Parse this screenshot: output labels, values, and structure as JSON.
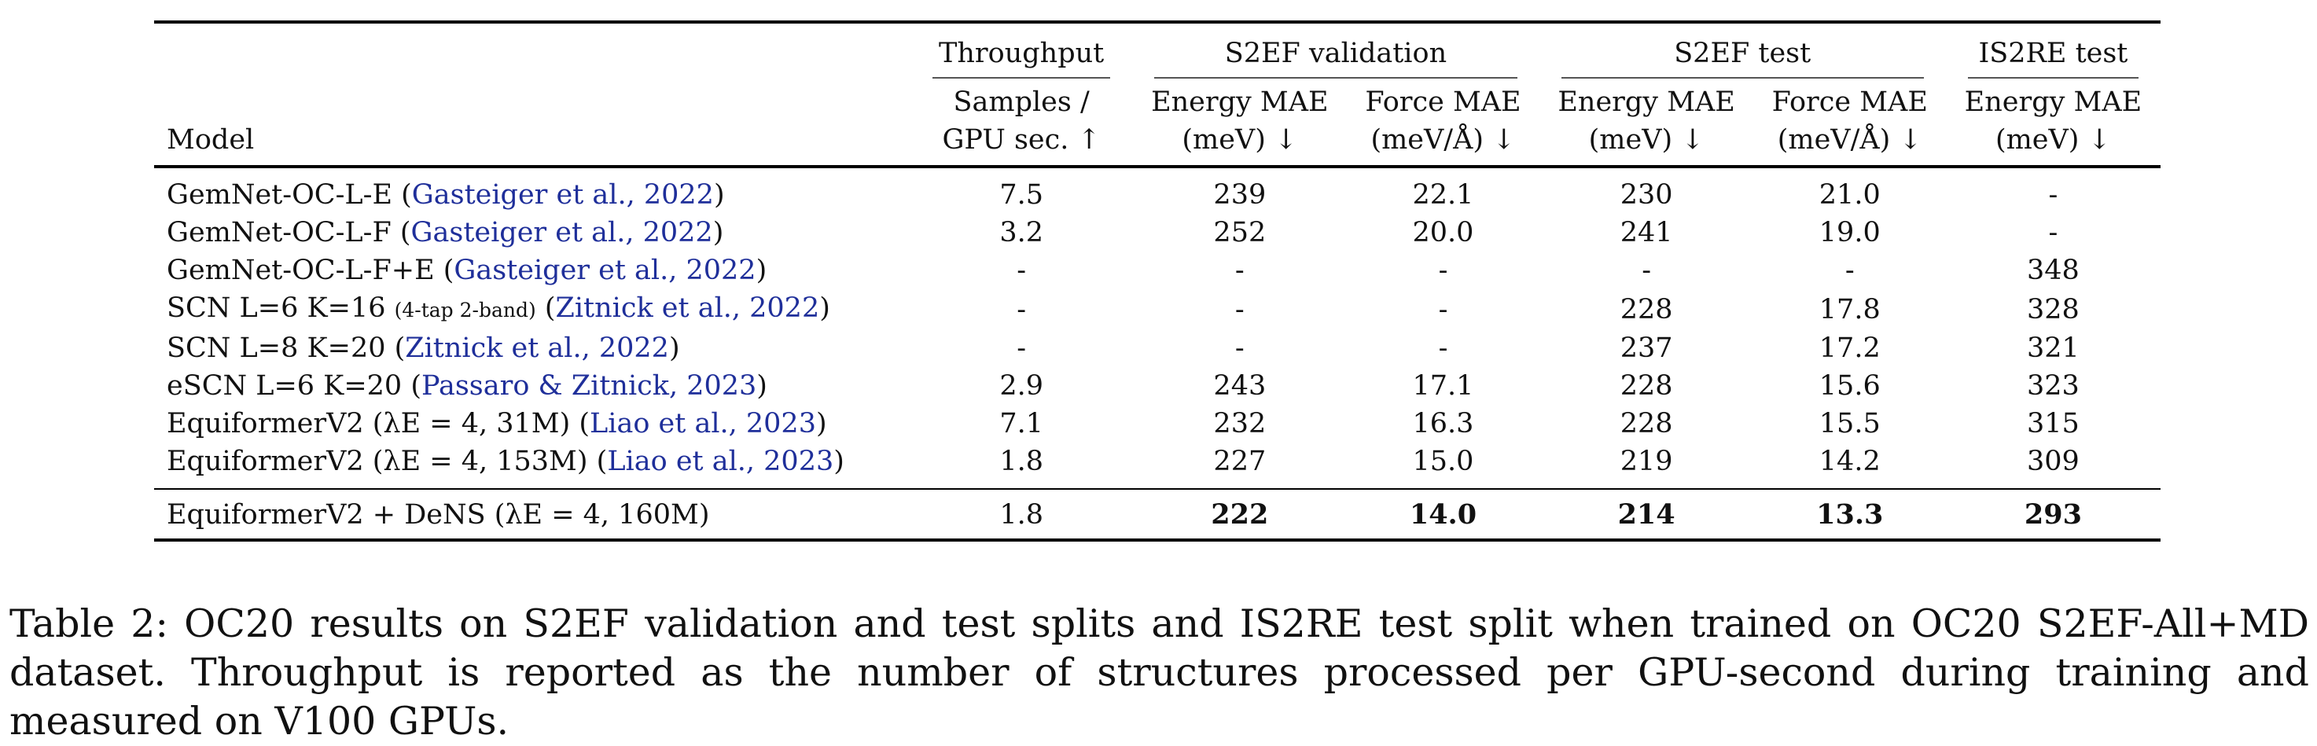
{
  "table": {
    "groups": {
      "throughput": "Throughput",
      "s2ef_val": "S2EF validation",
      "s2ef_test": "S2EF test",
      "is2re_test": "IS2RE test"
    },
    "headers": {
      "model": "Model",
      "throughput_1": "Samples /",
      "throughput_2": "GPU sec. ↑",
      "val_energy_1": "Energy MAE",
      "val_energy_2": "(meV) ↓",
      "val_force_1": "Force MAE",
      "val_force_2": "(meV/Å) ↓",
      "test_energy_1": "Energy MAE",
      "test_energy_2": "(meV) ↓",
      "test_force_1": "Force MAE",
      "test_force_2": "(meV/Å) ↓",
      "is2re_energy_1": "Energy MAE",
      "is2re_energy_2": "(meV) ↓"
    },
    "rows": [
      {
        "model": "GemNet-OC-L-E",
        "note": "",
        "cite": "Gasteiger et al., 2022",
        "throughput": "7.5",
        "val_energy": "239",
        "val_force": "22.1",
        "test_energy": "230",
        "test_force": "21.0",
        "is2re": "-"
      },
      {
        "model": "GemNet-OC-L-F",
        "note": "",
        "cite": "Gasteiger et al., 2022",
        "throughput": "3.2",
        "val_energy": "252",
        "val_force": "20.0",
        "test_energy": "241",
        "test_force": "19.0",
        "is2re": "-"
      },
      {
        "model": "GemNet-OC-L-F+E",
        "note": "",
        "cite": "Gasteiger et al., 2022",
        "throughput": "-",
        "val_energy": "-",
        "val_force": "-",
        "test_energy": "-",
        "test_force": "-",
        "is2re": "348"
      },
      {
        "model": "SCN L=6 K=16",
        "note": "(4-tap 2-band)",
        "cite": "Zitnick et al., 2022",
        "throughput": "-",
        "val_energy": "-",
        "val_force": "-",
        "test_energy": "228",
        "test_force": "17.8",
        "is2re": "328"
      },
      {
        "model": "SCN L=8 K=20",
        "note": "",
        "cite": "Zitnick et al., 2022",
        "throughput": "-",
        "val_energy": "-",
        "val_force": "-",
        "test_energy": "237",
        "test_force": "17.2",
        "is2re": "321"
      },
      {
        "model": "eSCN L=6 K=20",
        "note": "",
        "cite": "Passaro & Zitnick, 2023",
        "throughput": "2.9",
        "val_energy": "243",
        "val_force": "17.1",
        "test_energy": "228",
        "test_force": "15.6",
        "is2re": "323"
      },
      {
        "model": "EquiformerV2 (λE = 4, 31M)",
        "note": "",
        "cite": "Liao et al., 2023",
        "throughput": "7.1",
        "val_energy": "232",
        "val_force": "16.3",
        "test_energy": "228",
        "test_force": "15.5",
        "is2re": "315"
      },
      {
        "model": "EquiformerV2 (λE = 4, 153M)",
        "note": "",
        "cite": "Liao et al., 2023",
        "throughput": "1.8",
        "val_energy": "227",
        "val_force": "15.0",
        "test_energy": "219",
        "test_force": "14.2",
        "is2re": "309"
      }
    ],
    "final_row": {
      "model": "EquiformerV2 + DeNS (λE = 4, 160M)",
      "throughput": "1.8",
      "val_energy": "222",
      "val_force": "14.0",
      "test_energy": "214",
      "test_force": "13.3",
      "is2re": "293"
    }
  },
  "caption": "Table 2: OC20 results on S2EF validation and test splits and IS2RE test split when trained on OC20 S2EF-All+MD dataset. Throughput is reported as the number of structures processed per GPU-second during training and measured on V100 GPUs."
}
